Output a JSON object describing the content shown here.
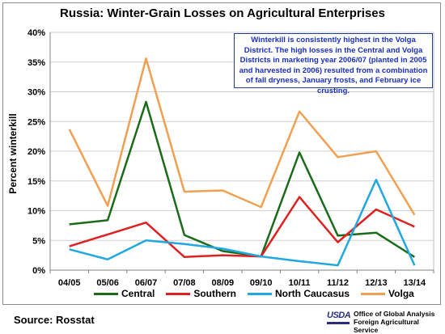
{
  "chart_data": {
    "type": "line",
    "title": "Russia:  Winter-Grain Losses on Agricultural Enterprises",
    "ylabel": "Percent winterkill",
    "xlabel": "",
    "ylim": [
      0,
      40
    ],
    "yticks": [
      "0%",
      "5%",
      "10%",
      "15%",
      "20%",
      "25%",
      "30%",
      "35%",
      "40%"
    ],
    "categories": [
      "04/05",
      "05/06",
      "06/07",
      "07/08",
      "08/09",
      "09/10",
      "10/11",
      "11/12",
      "12/13",
      "13/14"
    ],
    "grid": true,
    "legend_position": "bottom",
    "series": [
      {
        "name": "Central",
        "color": "#1a6b1a",
        "values": [
          7.7,
          8.4,
          28.3,
          5.9,
          3.2,
          2.3,
          19.8,
          5.8,
          6.3,
          2.2
        ]
      },
      {
        "name": "Southern",
        "color": "#e0201f",
        "values": [
          4.0,
          6.0,
          8.0,
          2.2,
          2.5,
          2.3,
          12.3,
          4.7,
          10.2,
          7.3
        ]
      },
      {
        "name": "North Caucasus",
        "color": "#20a8e0",
        "values": [
          3.5,
          1.8,
          5.0,
          4.4,
          3.6,
          2.3,
          1.5,
          0.8,
          15.2,
          0.8
        ]
      },
      {
        "name": "Volga",
        "color": "#f0a050",
        "values": [
          23.7,
          10.8,
          35.6,
          13.2,
          13.4,
          10.6,
          26.7,
          19.0,
          20.0,
          9.3
        ]
      }
    ]
  },
  "annotation": "Winterkill is consistently highest in the Volga District. The high losses in the Central and Volga Districts in marketing year 2006/07 (planted in 2005 and harvested in 2006) resulted from a combination of fall dryness, January frosts, and February ice crusting.",
  "footer": {
    "source": "Source:  Rosstat",
    "logo_text": "USDA",
    "agency_line1": "Office of Global Analysis",
    "agency_line2": "Foreign Agricultural Service"
  }
}
